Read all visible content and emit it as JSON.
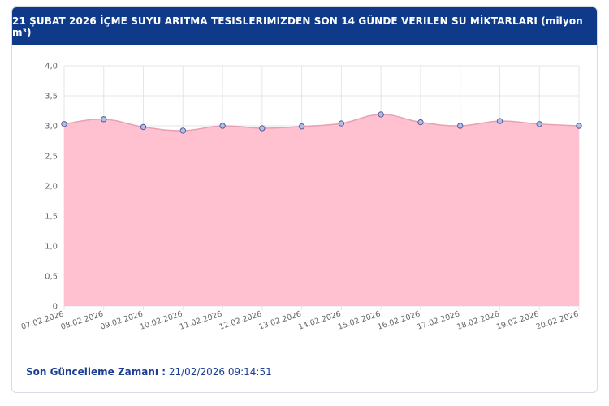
{
  "header": {
    "title": "21 ŞUBAT 2026 İÇME SUYU ARITMA TESISLERIMIZDEN SON 14 GÜNDE VERILEN SU MİKTARLARI (milyon m³)"
  },
  "chart_data": {
    "type": "area",
    "title": "21 ŞUBAT 2026 İÇME SUYU ARITMA TESISLERIMIZDEN SON 14 GÜNDE VERILEN SU MİKTARLARI (milyon m³)",
    "categories": [
      "07.02.2026",
      "08.02.2026",
      "09.02.2026",
      "10.02.2026",
      "11.02.2026",
      "12.02.2026",
      "13.02.2026",
      "14.02.2026",
      "15.02.2026",
      "16.02.2026",
      "17.02.2026",
      "18.02.2026",
      "19.02.2026",
      "20.02.2026"
    ],
    "series": [
      {
        "values": [
          3.03,
          3.11,
          2.98,
          2.92,
          3.0,
          2.96,
          2.99,
          3.04,
          3.19,
          3.06,
          3.0,
          3.08,
          3.03,
          3.0
        ]
      }
    ],
    "ylim": [
      0,
      4
    ],
    "yticks": [
      "0",
      "0,5",
      "1,0",
      "1,5",
      "2,0",
      "2,5",
      "3,0",
      "3,5",
      "4,0"
    ],
    "xlabel": "",
    "ylabel": "",
    "grid": true,
    "colors": {
      "fill": "#ffc0cf",
      "line": "#e8a0b4",
      "point_fill": "#aebff0",
      "point_stroke": "#5a5a8a",
      "grid": "#e6e6e6",
      "tick_text": "#666666"
    }
  },
  "footer": {
    "label": "Son Güncelleme Zamanı :",
    "value": "21/02/2026 09:14:51"
  }
}
